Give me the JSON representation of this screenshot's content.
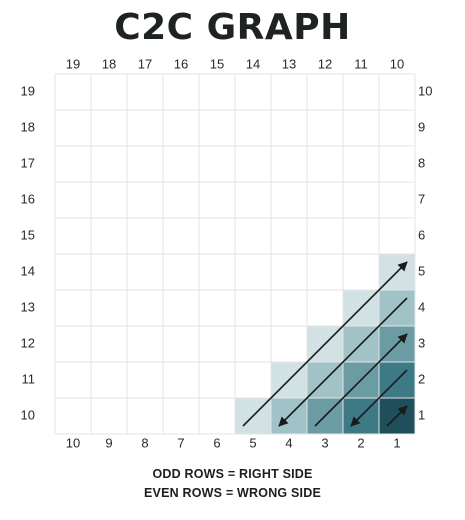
{
  "title": "C2C GRAPH",
  "top_labels": [
    "19",
    "18",
    "17",
    "16",
    "15",
    "14",
    "13",
    "12",
    "11",
    "10"
  ],
  "bottom_labels": [
    "10",
    "9",
    "8",
    "7",
    "6",
    "5",
    "4",
    "3",
    "2",
    "1"
  ],
  "left_labels": [
    "19",
    "18",
    "17",
    "16",
    "15",
    "14",
    "13",
    "12",
    "11",
    "10"
  ],
  "right_labels": [
    "10",
    "9",
    "8",
    "7",
    "6",
    "5",
    "4",
    "3",
    "2",
    "1"
  ],
  "legend": {
    "odd": "ODD ROWS = RIGHT SIDE",
    "even": "EVEN ROWS = WRONG SIDE"
  },
  "colors": {
    "grid_line": "#e4e4e4",
    "diagonal_1": "#1f4f5a",
    "diagonal_2": "#3d7a85",
    "diagonal_3": "#6b9ca4",
    "diagonal_4": "#a1c2c7",
    "diagonal_5": "#d2e2e4",
    "arrow": "#1b1b1b"
  },
  "rows": [
    {
      "row": 1,
      "side": "right",
      "direction": "up-right"
    },
    {
      "row": 2,
      "side": "wrong",
      "direction": "down-left"
    },
    {
      "row": 3,
      "side": "right",
      "direction": "up-right"
    },
    {
      "row": 4,
      "side": "wrong",
      "direction": "down-left"
    },
    {
      "row": 5,
      "side": "right",
      "direction": "up-right"
    }
  ]
}
